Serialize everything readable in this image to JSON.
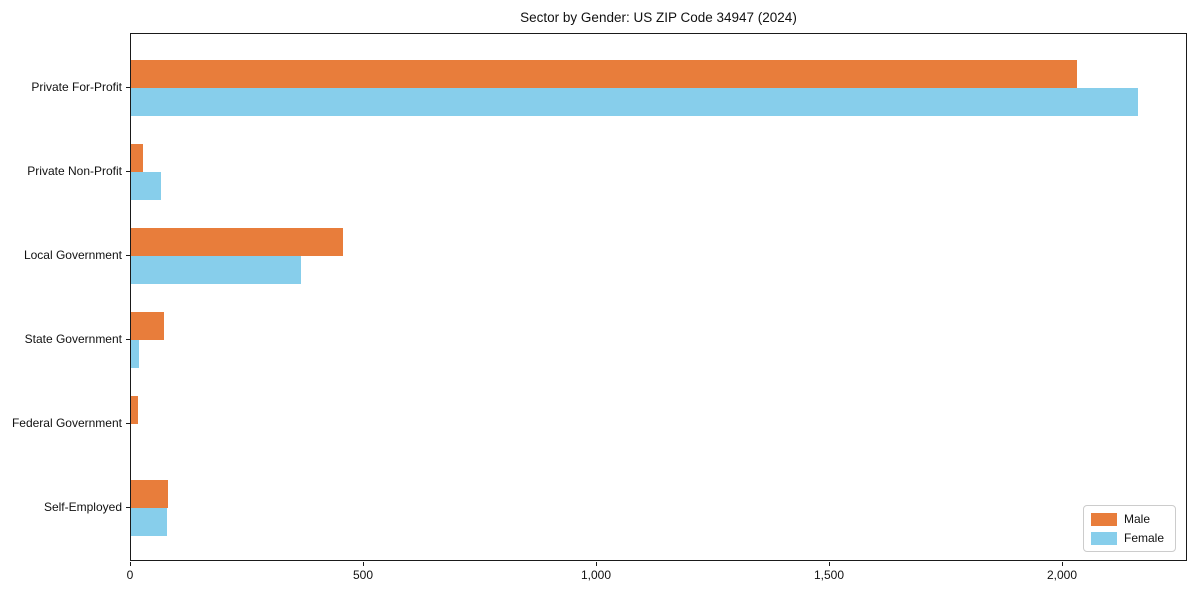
{
  "page": {
    "background_color": "#ffffff",
    "text_color": "#111111"
  },
  "chart_data": {
    "type": "bar",
    "orientation": "horizontal",
    "title": "Sector by Gender: US ZIP Code 34947 (2024)",
    "xlabel": "",
    "ylabel": "",
    "grid": false,
    "categories": [
      "Private For-Profit",
      "Private Non-Profit",
      "Local Government",
      "State Government",
      "Federal Government",
      "Self-Employed"
    ],
    "series": [
      {
        "name": "Male",
        "color": "#e87d3b",
        "values": [
          2030,
          25,
          455,
          70,
          15,
          80
        ]
      },
      {
        "name": "Female",
        "color": "#87ceeb",
        "values": [
          2160,
          65,
          365,
          18,
          0,
          78
        ]
      }
    ],
    "xlim": [
      0,
      2268
    ],
    "x_ticks": [
      {
        "value": 0,
        "label": "0"
      },
      {
        "value": 500,
        "label": "500"
      },
      {
        "value": 1000,
        "label": "1,000"
      },
      {
        "value": 1500,
        "label": "1,500"
      },
      {
        "value": 2000,
        "label": "2,000"
      }
    ],
    "legend": {
      "position": "lower right",
      "entries": [
        "Male",
        "Female"
      ]
    }
  }
}
